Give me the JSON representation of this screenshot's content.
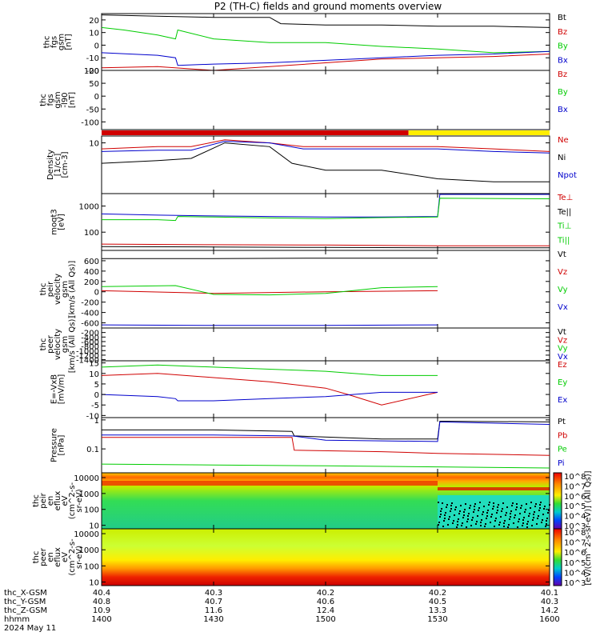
{
  "title": "P2 (TH-C) fields and ground moments overview",
  "colors": {
    "black": "#000000",
    "red": "#d00000",
    "green": "#00cc00",
    "blue": "#0000cc",
    "yellow": "#ffee00"
  },
  "chart_data": [
    {
      "type": "line",
      "name": "fgs",
      "ylabel_lines": [
        "thc",
        "fgs",
        "gsm",
        "[nT]"
      ],
      "ylim": [
        -20,
        25
      ],
      "yticks": [
        20,
        10,
        0,
        -10,
        -20
      ],
      "legend": [
        {
          "text": "Bt",
          "color": "#000000"
        },
        {
          "text": "Bz",
          "color": "#d00000"
        },
        {
          "text": "By",
          "color": "#00cc00"
        },
        {
          "text": "Bx",
          "color": "#0000cc"
        }
      ],
      "series": [
        {
          "name": "Bt",
          "color": "#000000",
          "x": [
            14.0,
            14.25,
            14.5,
            14.75,
            14.8,
            15.0,
            15.25,
            15.5,
            15.75,
            16.0
          ],
          "y": [
            24,
            23,
            22,
            22,
            17,
            16,
            16,
            15,
            15,
            14
          ]
        },
        {
          "name": "Bz",
          "color": "#d00000",
          "x": [
            14.0,
            14.25,
            14.5,
            14.75,
            15.0,
            15.25,
            15.5,
            15.75,
            16.0
          ],
          "y": [
            -18,
            -17,
            -20,
            -17,
            -14,
            -11,
            -10,
            -9,
            -7
          ]
        },
        {
          "name": "By",
          "color": "#00cc00",
          "x": [
            14.0,
            14.1,
            14.25,
            14.33,
            14.34,
            14.5,
            14.75,
            15.0,
            15.25,
            15.5,
            15.75,
            16.0
          ],
          "y": [
            14,
            12,
            8,
            5,
            12,
            5,
            2,
            2,
            -1,
            -3,
            -6,
            -5
          ]
        },
        {
          "name": "Bx",
          "color": "#0000cc",
          "x": [
            14.0,
            14.25,
            14.33,
            14.34,
            14.5,
            14.75,
            15.0,
            15.25,
            15.5,
            15.75,
            16.0
          ],
          "y": [
            -6,
            -8,
            -10,
            -16,
            -15,
            -14,
            -12,
            -10,
            -8,
            -7,
            -5
          ]
        }
      ]
    },
    {
      "type": "line",
      "name": "fgs-empty",
      "ylabel_lines": [
        "thc",
        "fgs",
        "gsm",
        "-l90",
        "[nT]"
      ],
      "ylim": [
        -130,
        100
      ],
      "yticks": [
        100,
        50,
        0,
        -50,
        -100
      ],
      "legend": [
        {
          "text": "Bz",
          "color": "#d00000"
        },
        {
          "text": "By",
          "color": "#00cc00"
        },
        {
          "text": "Bx",
          "color": "#0000cc"
        }
      ],
      "series": []
    },
    {
      "type": "bar-status",
      "name": "status",
      "segments": [
        {
          "x0": 14.0,
          "x1": 15.37,
          "color": "#d00000"
        },
        {
          "x0": 15.37,
          "x1": 16.0,
          "color": "#ffee00"
        }
      ]
    },
    {
      "type": "line",
      "name": "density",
      "ylabel_lines": [
        "Density",
        "[1/cc]",
        "[cm-3]"
      ],
      "ylim": [
        0.5,
        15
      ],
      "log": true,
      "yticks": [
        10
      ],
      "legend": [
        {
          "text": "Ne",
          "color": "#d00000"
        },
        {
          "text": "Ni",
          "color": "#000000"
        },
        {
          "text": "Npot",
          "color": "#0000cc"
        }
      ],
      "series": [
        {
          "name": "Ne",
          "color": "#d00000",
          "x": [
            14.0,
            14.25,
            14.4,
            14.55,
            14.75,
            14.9,
            15.25,
            15.5,
            15.75,
            16.0
          ],
          "y": [
            7,
            8,
            8,
            12,
            10,
            8,
            8,
            8,
            7,
            6
          ]
        },
        {
          "name": "Npot",
          "color": "#0000cc",
          "x": [
            14.0,
            14.25,
            14.4,
            14.55,
            14.75,
            14.9,
            15.25,
            15.5,
            15.75,
            16.0
          ],
          "y": [
            6,
            6.5,
            6.5,
            11,
            10,
            7,
            7,
            7,
            6,
            5.5
          ]
        },
        {
          "name": "Ni",
          "color": "#000000",
          "x": [
            14.0,
            14.25,
            14.4,
            14.55,
            14.75,
            14.85,
            15.0,
            15.25,
            15.5,
            15.75,
            16.0
          ],
          "y": [
            3,
            3.5,
            4,
            10,
            8,
            3,
            2,
            2,
            1.2,
            1,
            1
          ]
        }
      ]
    },
    {
      "type": "line",
      "name": "temperature",
      "ylabel_lines": [
        "moqt3",
        "[eV]"
      ],
      "ylim": [
        20,
        3000
      ],
      "log": true,
      "yticks": [
        1000,
        100
      ],
      "legend": [
        {
          "text": "Te⊥",
          "color": "#d00000"
        },
        {
          "text": "Te||",
          "color": "#000000"
        },
        {
          "text": "Ti⊥",
          "color": "#00cc00"
        },
        {
          "text": "Ti||",
          "color": "#00cc00"
        }
      ],
      "series": [
        {
          "name": "Ti-blue",
          "color": "#0000cc",
          "x": [
            14.0,
            14.25,
            14.5,
            14.75,
            15.0,
            15.25,
            15.5,
            15.51,
            16.0
          ],
          "y": [
            500,
            450,
            420,
            400,
            380,
            380,
            400,
            2800,
            2800
          ]
        },
        {
          "name": "Ti-green",
          "color": "#00cc00",
          "x": [
            14.0,
            14.25,
            14.33,
            14.34,
            14.5,
            14.75,
            15.0,
            15.25,
            15.5,
            15.51,
            16.0
          ],
          "y": [
            300,
            300,
            280,
            400,
            380,
            350,
            330,
            360,
            380,
            2000,
            1900
          ]
        },
        {
          "name": "Te",
          "color": "#d00000",
          "x": [
            14.0,
            14.5,
            15.0,
            15.5,
            16.0
          ],
          "y": [
            35,
            33,
            32,
            30,
            30
          ]
        },
        {
          "name": "Te-black",
          "color": "#000000",
          "x": [
            14.0,
            14.5,
            15.0,
            15.5,
            16.0
          ],
          "y": [
            28,
            27,
            26,
            25,
            25
          ]
        }
      ]
    },
    {
      "type": "line",
      "name": "peir-velocity",
      "ylabel_lines": [
        "thc",
        "peir",
        "velocity",
        "gsm",
        "[km/s (All Qs)]"
      ],
      "ylim": [
        -700,
        800
      ],
      "yticks": [
        600,
        400,
        200,
        0,
        -200,
        -400,
        -600
      ],
      "legend": [
        {
          "text": "Vt",
          "color": "#000000"
        },
        {
          "text": "Vz",
          "color": "#d00000"
        },
        {
          "text": "Vy",
          "color": "#00cc00"
        },
        {
          "text": "Vx",
          "color": "#0000cc"
        }
      ],
      "series": [
        {
          "name": "Vt",
          "color": "#000000",
          "x": [
            14.0,
            14.5,
            15.0,
            15.5
          ],
          "y": [
            640,
            640,
            650,
            650
          ]
        },
        {
          "name": "Vz",
          "color": "#d00000",
          "x": [
            14.0,
            14.5,
            15.0,
            15.5
          ],
          "y": [
            20,
            -30,
            0,
            20
          ]
        },
        {
          "name": "Vy",
          "color": "#00cc00",
          "x": [
            14.0,
            14.33,
            14.5,
            14.75,
            15.0,
            15.25,
            15.5
          ],
          "y": [
            100,
            120,
            -50,
            -60,
            -30,
            80,
            100
          ]
        },
        {
          "name": "Vx",
          "color": "#0000cc",
          "x": [
            14.0,
            14.5,
            15.0,
            15.5
          ],
          "y": [
            -640,
            -650,
            -650,
            -640
          ]
        }
      ]
    },
    {
      "type": "line",
      "name": "peer-velocity",
      "ylabel_lines": [
        "thc",
        "peer",
        "velocity",
        "gsm",
        "[km/s (All Qs)]"
      ],
      "ylim": [
        -1450,
        0
      ],
      "yticks": [
        -200,
        -400,
        -600,
        -800,
        -1000,
        -1200,
        -1400
      ],
      "legend": [
        {
          "text": "Vt",
          "color": "#000000"
        },
        {
          "text": "Vz",
          "color": "#d00000"
        },
        {
          "text": "Vy",
          "color": "#00cc00"
        },
        {
          "text": "Vx",
          "color": "#0000cc"
        }
      ],
      "series": []
    },
    {
      "type": "line",
      "name": "efield",
      "ylabel_lines": [
        "E=-VxB",
        "[mV/m]"
      ],
      "ylim": [
        -11,
        16
      ],
      "yticks": [
        15,
        10,
        5,
        0,
        -5,
        -10
      ],
      "legend": [
        {
          "text": "Ez",
          "color": "#d00000"
        },
        {
          "text": "Ey",
          "color": "#00cc00"
        },
        {
          "text": "Ex",
          "color": "#0000cc"
        }
      ],
      "series": [
        {
          "name": "Ey",
          "color": "#00cc00",
          "x": [
            14.0,
            14.25,
            14.5,
            14.75,
            15.0,
            15.25,
            15.5
          ],
          "y": [
            13,
            14,
            13,
            12,
            11,
            9,
            9
          ]
        },
        {
          "name": "Ez",
          "color": "#d00000",
          "x": [
            14.0,
            14.25,
            14.5,
            14.75,
            15.0,
            15.1,
            15.25,
            15.5
          ],
          "y": [
            9,
            10,
            8,
            6,
            3,
            0,
            -5,
            1
          ]
        },
        {
          "name": "Ex",
          "color": "#0000cc",
          "x": [
            14.0,
            14.25,
            14.33,
            14.34,
            14.5,
            14.75,
            15.0,
            15.25,
            15.5
          ],
          "y": [
            0,
            -1,
            -2,
            -3,
            -3,
            -2,
            -1,
            1,
            1
          ]
        }
      ]
    },
    {
      "type": "line",
      "name": "pressure",
      "ylabel_lines": [
        "Pressure",
        "[nPa]"
      ],
      "ylim": [
        0.015,
        1.2
      ],
      "log": true,
      "yticks": [
        1.0,
        0.1
      ],
      "legend": [
        {
          "text": "Pt",
          "color": "#000000"
        },
        {
          "text": "Pb",
          "color": "#d00000"
        },
        {
          "text": "Pe",
          "color": "#00cc00"
        },
        {
          "text": "Pi",
          "color": "#0000cc"
        }
      ],
      "series": [
        {
          "name": "Pt",
          "color": "#000000",
          "x": [
            14.0,
            14.5,
            14.85,
            14.86,
            15.25,
            15.5,
            15.51,
            16.0
          ],
          "y": [
            0.45,
            0.45,
            0.4,
            0.28,
            0.22,
            0.22,
            0.9,
            0.85
          ]
        },
        {
          "name": "Pi",
          "color": "#0000cc",
          "x": [
            14.0,
            14.5,
            14.85,
            15.0,
            15.5,
            15.51,
            16.0
          ],
          "y": [
            0.3,
            0.3,
            0.28,
            0.2,
            0.18,
            0.85,
            0.7
          ]
        },
        {
          "name": "Pb",
          "color": "#d00000",
          "x": [
            14.0,
            14.5,
            14.85,
            14.86,
            15.25,
            15.5,
            16.0
          ],
          "y": [
            0.25,
            0.25,
            0.25,
            0.09,
            0.08,
            0.07,
            0.06
          ]
        },
        {
          "name": "Pe",
          "color": "#00cc00",
          "x": [
            14.0,
            14.5,
            15.0,
            15.5,
            16.0
          ],
          "y": [
            0.03,
            0.028,
            0.026,
            0.024,
            0.022
          ]
        }
      ]
    },
    {
      "type": "heatmap",
      "name": "peir-eflux",
      "ylabel_lines": [
        "thc",
        "peir",
        "en",
        "eflux",
        "eV",
        "(cm^2-s-",
        "sr-eV)"
      ],
      "ylim": [
        6,
        20000
      ],
      "log": true,
      "yticks": [
        10000,
        1000,
        100,
        10
      ]
    },
    {
      "type": "heatmap",
      "name": "peer-eflux",
      "ylabel_lines": [
        "thc",
        "peer",
        "en",
        "eflux",
        "eV",
        "(cm^2-s-",
        "sr-eV)"
      ],
      "ylim": [
        6,
        20000
      ],
      "log": true,
      "yticks": [
        10000,
        1000,
        100,
        10
      ]
    }
  ],
  "colorbar": {
    "label": "[eV/(cm^2-s-sr-eV)] (All Qs)]",
    "ticks": [
      "10^8",
      "10^7",
      "10^6",
      "10^5",
      "10^4",
      "10^3"
    ]
  },
  "footer": {
    "rows": [
      {
        "label": "thc_X-GSM",
        "values": [
          "40.4",
          "40.3",
          "40.2",
          "40.2",
          "40.1"
        ]
      },
      {
        "label": "thc_Y-GSM",
        "values": [
          "40.8",
          "40.7",
          "40.6",
          "40.5",
          "40.3"
        ]
      },
      {
        "label": "thc_Z-GSM",
        "values": [
          "10.9",
          "11.6",
          "12.4",
          "13.3",
          "14.2"
        ]
      },
      {
        "label": "hhmm",
        "values": [
          "1400",
          "1430",
          "1500",
          "1530",
          "1600"
        ]
      }
    ],
    "date": "2024 May 11"
  }
}
